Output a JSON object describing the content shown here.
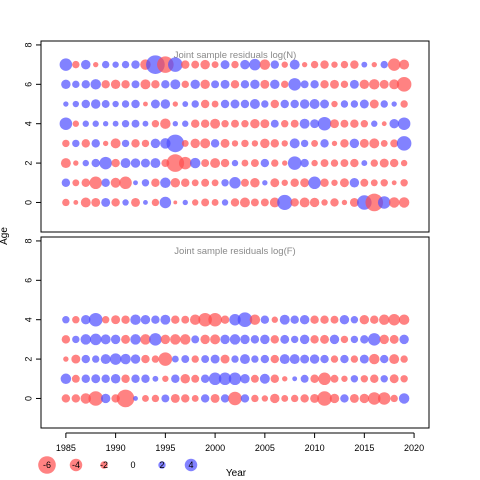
{
  "chart_data": {
    "type": "scatter",
    "encoding": "bubble size = |residual|, red = negative, blue = positive",
    "colors": {
      "negative": "#ff4d4d",
      "positive": "#4d4dff"
    },
    "xlabel": "Year",
    "ylabel": "Age",
    "xlim": [
      1982.5,
      2021.5
    ],
    "x_ticks": [
      1985,
      1990,
      1995,
      2000,
      2005,
      2010,
      2015,
      2020
    ],
    "years": [
      1985,
      1986,
      1987,
      1988,
      1989,
      1990,
      1991,
      1992,
      1993,
      1994,
      1995,
      1996,
      1997,
      1998,
      1999,
      2000,
      2001,
      2002,
      2003,
      2004,
      2005,
      2006,
      2007,
      2008,
      2009,
      2010,
      2011,
      2012,
      2013,
      2014,
      2015,
      2016,
      2017,
      2018,
      2019
    ],
    "panels": [
      {
        "title": "Joint sample residuals log(N)",
        "ylim": [
          -1.5,
          8.2
        ],
        "y_ticks": [
          0,
          2,
          4,
          6,
          8
        ],
        "residuals": [
          [
            -1.0,
            -0.5,
            -1.5,
            -1.3,
            1.3,
            -1.2,
            0.8,
            -1.3,
            0.5,
            -1.0,
            1.8,
            -0.3,
            0.6,
            -0.8,
            -1.1,
            -0.9,
            0.8,
            -1.2,
            -1.5,
            -1.1,
            -1.1,
            -1.5,
            2.5,
            -1.2,
            -1.5,
            -1.4,
            -0.8,
            -1.2,
            -0.6,
            -1.3,
            2.4,
            -3.0,
            2.0,
            -1.6,
            -1.6
          ],
          [
            1.2,
            -0.9,
            -1.2,
            -2.0,
            1.2,
            -1.5,
            -2.0,
            0.5,
            1.0,
            -1.2,
            1.6,
            -1.4,
            -1.2,
            -0.9,
            -1.1,
            -0.9,
            1.0,
            1.8,
            -1.1,
            -1.4,
            0.6,
            -1.3,
            -0.8,
            -1.2,
            -1.3,
            2.0,
            -1.2,
            -0.8,
            -1.3,
            1.4,
            -1.1,
            -0.9,
            -1.0,
            -0.5,
            -1.0
          ],
          [
            -1.5,
            -0.6,
            0.8,
            1.2,
            2.0,
            -1.2,
            1.5,
            1.4,
            1.3,
            1.5,
            -1.1,
            -3.0,
            -2.0,
            1.6,
            -1.1,
            -1.5,
            -1.2,
            0.8,
            -0.9,
            -1.1,
            1.2,
            -1.0,
            -0.6,
            2.2,
            1.2,
            -0.8,
            -1.1,
            -1.0,
            -1.1,
            -1.2,
            0.7,
            -1.0,
            -1.3,
            -1.2,
            -0.8
          ],
          [
            -1.0,
            1.0,
            -1.2,
            1.2,
            -0.6,
            -1.5,
            1.0,
            -1.2,
            -1.0,
            1.4,
            1.6,
            3.0,
            -0.9,
            -1.4,
            -1.5,
            1.2,
            -1.3,
            -0.8,
            -1.0,
            -0.8,
            -1.4,
            -1.2,
            -0.8,
            1.5,
            1.0,
            -0.9,
            1.2,
            -0.6,
            -1.2,
            1.4,
            -1.3,
            -1.5,
            -0.9,
            -1.1,
            2.4
          ],
          [
            2.0,
            -0.8,
            0.8,
            0.8,
            0.6,
            0.7,
            1.0,
            1.1,
            0.7,
            -1.0,
            -1.6,
            0.6,
            0.8,
            -1.2,
            -1.2,
            -1.5,
            -1.0,
            -1.1,
            -1.0,
            -1.4,
            -1.3,
            1.1,
            -1.0,
            -1.1,
            1.5,
            1.3,
            2.2,
            -1.3,
            -1.1,
            -1.2,
            -1.0,
            0.8,
            -0.5,
            1.4,
            2.0
          ],
          [
            0.6,
            0.8,
            1.2,
            1.4,
            1.1,
            0.8,
            1.0,
            1.2,
            -0.5,
            1.3,
            1.4,
            -0.6,
            0.7,
            1.0,
            -1.2,
            -0.9,
            1.2,
            1.3,
            1.2,
            1.5,
            1.0,
            -1.2,
            1.2,
            1.2,
            1.4,
            1.5,
            1.3,
            -0.8,
            1.0,
            1.0,
            1.3,
            -1.3,
            1.0,
            0.6,
            -1.0
          ],
          [
            1.4,
            1.0,
            1.2,
            1.6,
            -1.2,
            -1.4,
            -1.2,
            1.1,
            -1.5,
            -1.2,
            1.2,
            1.5,
            -1.0,
            1.4,
            -1.4,
            1.1,
            1.3,
            -1.2,
            1.2,
            1.4,
            -1.3,
            1.4,
            -1.0,
            2.0,
            1.1,
            1.2,
            -1.2,
            -1.3,
            -1.0,
            1.3,
            -1.4,
            -1.6,
            -1.3,
            -1.5,
            -2.4
          ],
          [
            2.0,
            -1.0,
            1.4,
            -0.6,
            1.0,
            0.8,
            1.0,
            1.2,
            -1.6,
            3.2,
            -2.8,
            2.4,
            -1.2,
            -1.1,
            -1.4,
            -0.9,
            1.3,
            -1.0,
            1.4,
            1.8,
            -1.6,
            1.2,
            -0.8,
            1.5,
            -0.6,
            -1.0,
            -1.2,
            -0.8,
            -1.0,
            -1.2,
            0.7,
            -0.6,
            1.0,
            -2.0,
            -1.5
          ]
        ]
      },
      {
        "title": "Joint sample residuals log(F)",
        "ylim": [
          -1.5,
          8.2
        ],
        "y_ticks": [
          0,
          2,
          4,
          6,
          8
        ],
        "residuals": [
          [
            -1.2,
            -1.2,
            -1.6,
            -2.4,
            1.4,
            -1.2,
            -3.0,
            0.5,
            -0.9,
            -1.0,
            1.1,
            -1.3,
            -1.2,
            -0.9,
            1.2,
            -1.3,
            1.2,
            -2.2,
            1.2,
            -1.0,
            -0.8,
            -1.4,
            -0.9,
            -1.0,
            -1.2,
            -1.3,
            -2.4,
            -1.4,
            1.2,
            -1.3,
            -1.4,
            -2.0,
            -2.0,
            -1.0,
            1.6
          ],
          [
            1.6,
            -1.1,
            1.2,
            1.3,
            1.2,
            1.4,
            -1.2,
            1.2,
            1.2,
            0.7,
            -0.8,
            1.2,
            -1.4,
            -1.1,
            1.2,
            2.0,
            2.0,
            2.0,
            1.4,
            -1.1,
            1.5,
            -1.2,
            -0.6,
            0.5,
            1.1,
            -1.2,
            -2.0,
            -1.1,
            -0.8,
            1.0,
            -1.0,
            -1.2,
            1.0,
            -1.3,
            -1.0
          ],
          [
            -0.6,
            -1.3,
            1.2,
            1.0,
            1.5,
            1.8,
            1.6,
            1.4,
            -1.2,
            -1.0,
            -2.2,
            0.9,
            1.1,
            -1.0,
            1.1,
            1.3,
            -1.3,
            1.0,
            1.5,
            1.0,
            1.2,
            -1.2,
            1.5,
            1.5,
            1.3,
            1.4,
            1.2,
            -1.0,
            1.2,
            -1.0,
            1.3,
            -1.6,
            1.2,
            -1.5,
            -1.0
          ],
          [
            -1.2,
            1.0,
            1.6,
            1.8,
            1.5,
            1.4,
            -1.3,
            1.6,
            -1.6,
            2.0,
            -1.4,
            -1.6,
            -1.6,
            1.1,
            -1.4,
            -1.5,
            1.4,
            1.6,
            1.4,
            1.2,
            1.4,
            -1.2,
            1.3,
            1.0,
            1.4,
            -1.2,
            -1.3,
            1.4,
            -1.0,
            1.0,
            1.2,
            2.0,
            -1.4,
            -1.3,
            1.4
          ],
          [
            1.0,
            -1.0,
            1.4,
            2.2,
            -1.0,
            -1.3,
            -1.2,
            1.6,
            1.4,
            1.2,
            1.5,
            -1.2,
            -1.1,
            -1.6,
            -2.2,
            -2.2,
            -1.2,
            1.8,
            2.4,
            -1.6,
            1.2,
            -0.8,
            1.5,
            1.2,
            1.4,
            -1.2,
            -1.2,
            -1.1,
            1.4,
            1.0,
            -1.4,
            -1.2,
            -1.6,
            -1.8,
            -1.6
          ]
        ]
      }
    ],
    "legend": [
      {
        "label": "-6",
        "value": -6
      },
      {
        "label": "-4",
        "value": -4
      },
      {
        "label": "-2",
        "value": -2
      },
      {
        "label": "0",
        "value": 0
      },
      {
        "label": "2",
        "value": 2
      },
      {
        "label": "4",
        "value": 4
      }
    ]
  }
}
